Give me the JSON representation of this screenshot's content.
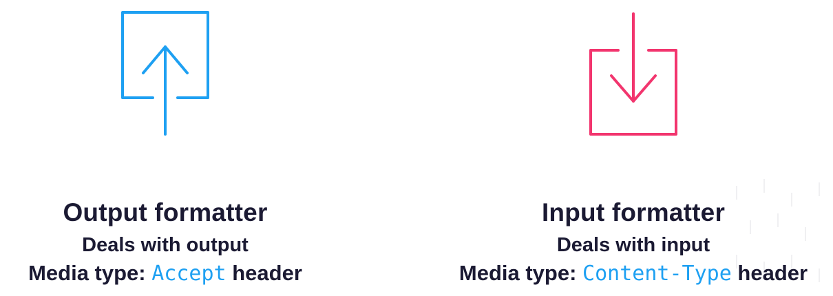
{
  "colors": {
    "output_accent": "#1ea0f2",
    "input_accent": "#f2356e",
    "text": "#1b1a33"
  },
  "output_formatter": {
    "icon": "upload-arrow-box-icon",
    "title": "Output formatter",
    "subtitle": "Deals with output",
    "media_prefix": "Media type:",
    "media_code": "Accept",
    "media_suffix": "header"
  },
  "input_formatter": {
    "icon": "download-arrow-box-icon",
    "title": "Input formatter",
    "subtitle": "Deals with input",
    "media_prefix": "Media type:",
    "media_code": "Content-Type",
    "media_suffix": "header"
  }
}
